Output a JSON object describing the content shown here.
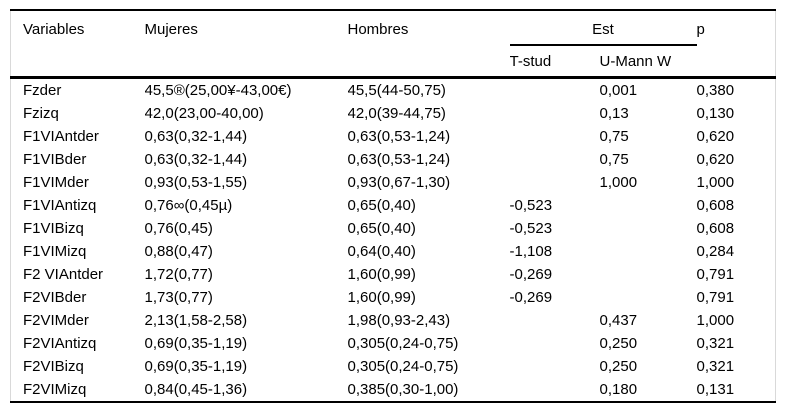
{
  "table": {
    "headers": {
      "variables": "Variables",
      "mujeres": "Mujeres",
      "hombres": "Hombres",
      "est": "Est",
      "t_stud": "T-stud",
      "u_mann": "U-Mann W",
      "p": "p"
    },
    "rows": [
      {
        "variable": "Fzder",
        "mujeres": "45,5®(25,00¥-43,00€)",
        "hombres": "45,5(44-50,75)",
        "t_stud": "",
        "u_mann": "0,001",
        "p": "0,380"
      },
      {
        "variable": "Fzizq",
        "mujeres": "42,0(23,00-40,00)",
        "hombres": "42,0(39-44,75)",
        "t_stud": "",
        "u_mann": "0,13",
        "p": "0,130"
      },
      {
        "variable": "F1VIAntder",
        "mujeres": "0,63(0,32-1,44)",
        "hombres": "0,63(0,53-1,24)",
        "t_stud": "",
        "u_mann": "0,75",
        "p": "0,620"
      },
      {
        "variable": "F1VIBder",
        "mujeres": "0,63(0,32-1,44)",
        "hombres": "0,63(0,53-1,24)",
        "t_stud": "",
        "u_mann": "0,75",
        "p": "0,620"
      },
      {
        "variable": "F1VIMder",
        "mujeres": "0,93(0,53-1,55)",
        "hombres": "0,93(0,67-1,30)",
        "t_stud": "",
        "u_mann": "1,000",
        "p": "1,000"
      },
      {
        "variable": "F1VIAntizq",
        "mujeres": "0,76∞(0,45µ)",
        "hombres": "0,65(0,40)",
        "t_stud": "-0,523",
        "u_mann": "",
        "p": "0,608"
      },
      {
        "variable": "F1VIBizq",
        "mujeres": "0,76(0,45)",
        "hombres": "0,65(0,40)",
        "t_stud": "-0,523",
        "u_mann": "",
        "p": "0,608"
      },
      {
        "variable": "F1VIMizq",
        "mujeres": "0,88(0,47)",
        "hombres": "0,64(0,40)",
        "t_stud": "-1,108",
        "u_mann": "",
        "p": "0,284"
      },
      {
        "variable": "F2 VIAntder",
        "mujeres": "1,72(0,77)",
        "hombres": "1,60(0,99)",
        "t_stud": "-0,269",
        "u_mann": "",
        "p": "0,791"
      },
      {
        "variable": "F2VIBder",
        "mujeres": "1,73(0,77)",
        "hombres": "1,60(0,99)",
        "t_stud": "-0,269",
        "u_mann": "",
        "p": "0,791"
      },
      {
        "variable": "F2VIMder",
        "mujeres": "2,13(1,58-2,58)",
        "hombres": "1,98(0,93-2,43)",
        "t_stud": "",
        "u_mann": "0,437",
        "p": "1,000"
      },
      {
        "variable": "F2VIAntizq",
        "mujeres": "0,69(0,35-1,19)",
        "hombres": "0,305(0,24-0,75)",
        "t_stud": "",
        "u_mann": "0,250",
        "p": "0,321"
      },
      {
        "variable": "F2VIBizq",
        "mujeres": "0,69(0,35-1,19)",
        "hombres": "0,305(0,24-0,75)",
        "t_stud": "",
        "u_mann": "0,250",
        "p": "0,321"
      },
      {
        "variable": "F2VIMizq",
        "mujeres": "0,84(0,45-1,36)",
        "hombres": "0,385(0,30-1,00)",
        "t_stud": "",
        "u_mann": "0,180",
        "p": "0,131"
      }
    ]
  },
  "colors": {
    "text": "#000000",
    "background": "#ffffff",
    "rule": "#000000",
    "grid": "#d9d9d9"
  }
}
